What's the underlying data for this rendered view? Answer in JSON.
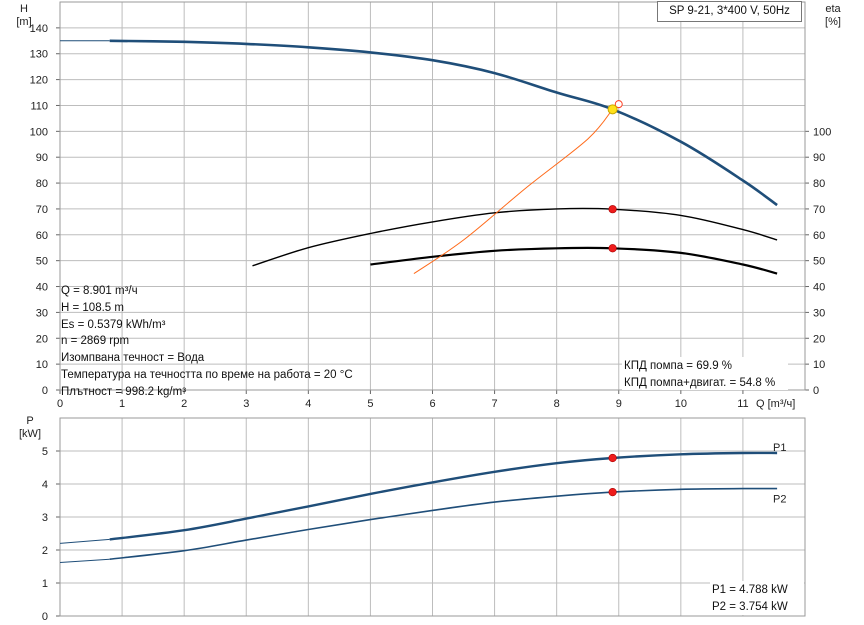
{
  "chart_data": [
    {
      "type": "line",
      "title": "SP 9-21, 3*400 V, 50Hz",
      "xlabel": "Q [m³/ч]",
      "ylabel": "H\n[m]",
      "ylabel_right": "eta\n[%]",
      "xlim": [
        0,
        12
      ],
      "ylim": [
        0,
        150
      ],
      "ylim_right": [
        0,
        150
      ],
      "x_ticks": [
        0,
        1,
        2,
        3,
        4,
        5,
        6,
        7,
        8,
        9,
        10,
        11
      ],
      "y_ticks": [
        0,
        10,
        20,
        30,
        40,
        50,
        60,
        70,
        80,
        90,
        100,
        110,
        120,
        130,
        140
      ],
      "y_ticks_right": [
        0,
        10,
        20,
        30,
        40,
        50,
        60,
        70,
        80,
        90,
        100
      ],
      "grid": true,
      "series": [
        {
          "key": "H",
          "color": "#1f4e79",
          "x": [
            0,
            0.8,
            2,
            3,
            4,
            5,
            6,
            7,
            8,
            8.9,
            10,
            11,
            11.55
          ],
          "y": [
            135,
            135,
            134.6,
            133.8,
            132.5,
            130.5,
            127.5,
            122.5,
            115,
            108.5,
            96,
            81,
            71.5
          ]
        },
        {
          "key": "eta_pump",
          "color": "#000000",
          "x": [
            3.1,
            4,
            5,
            6,
            7,
            8,
            8.9,
            10,
            11,
            11.55
          ],
          "y": [
            48,
            55,
            60.5,
            65,
            68.5,
            70,
            69.9,
            67.5,
            62,
            58
          ]
        },
        {
          "key": "eta_total",
          "color": "#000000",
          "x": [
            5,
            6,
            7,
            8,
            8.9,
            10,
            11,
            11.55
          ],
          "y": [
            48.5,
            51.5,
            53.8,
            54.8,
            54.8,
            53,
            48.5,
            45
          ]
        },
        {
          "key": "system",
          "color": "#ff6a1a",
          "x": [
            5.7,
            6.5,
            7.5,
            8.5,
            8.9
          ],
          "y": [
            45,
            58,
            78,
            97,
            108.5
          ]
        }
      ],
      "operating_point": {
        "x": 8.901,
        "H": 108.5,
        "eta_pump": 69.9,
        "eta_total": 54.8
      },
      "requested_point": {
        "x": 9.0,
        "H": 110.5
      },
      "annotations": {
        "info_lines": [
          "Q = 8.901 m³/ч",
          "H = 108.5 m",
          "Es = 0.5379 kWh/m³",
          "n = 2869 rpm",
          "Изомпвана течност = Вода",
          "Температура на течността по време на работа = 20 °C",
          "Плътност = 998.2 kg/m³"
        ],
        "eff_lines": [
          "КПД помпа = 69.9 %",
          "КПД помпа+двигат. = 54.8 %"
        ]
      }
    },
    {
      "type": "line",
      "ylabel": "P\n[kW]",
      "xlim": [
        0,
        12
      ],
      "ylim": [
        0,
        6
      ],
      "y_ticks": [
        0,
        1,
        2,
        3,
        4,
        5
      ],
      "grid": true,
      "series": [
        {
          "name": "P1",
          "color": "#1f4e79",
          "x": [
            0,
            0.8,
            2,
            3,
            4,
            5,
            6,
            7,
            8,
            8.9,
            10,
            11,
            11.55
          ],
          "y": [
            2.2,
            2.32,
            2.6,
            2.95,
            3.32,
            3.7,
            4.05,
            4.37,
            4.63,
            4.788,
            4.9,
            4.94,
            4.94
          ]
        },
        {
          "name": "P2",
          "color": "#1f4e79",
          "x": [
            0,
            0.8,
            2,
            3,
            4,
            5,
            6,
            7,
            8,
            8.9,
            10,
            11,
            11.55
          ],
          "y": [
            1.62,
            1.72,
            1.98,
            2.3,
            2.62,
            2.92,
            3.2,
            3.45,
            3.63,
            3.754,
            3.84,
            3.86,
            3.86
          ]
        }
      ],
      "operating_point": {
        "x": 8.901,
        "P1": 4.788,
        "P2": 3.754
      },
      "annotations": {
        "power_lines": [
          "P1 = 4.788 kW",
          "P2 = 3.754 kW"
        ]
      }
    }
  ]
}
